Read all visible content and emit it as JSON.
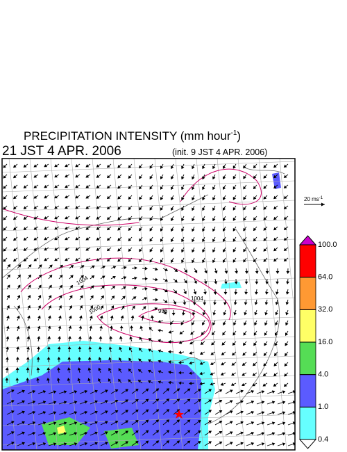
{
  "title": {
    "main": "PRECIPITATION INTENSITY (mm hour",
    "exponent": "-1",
    "close": ")"
  },
  "valid_time": "21 JST 4 APR. 2006",
  "init_time": "(init. 9 JST 4 APR. 2006)",
  "wind_scale": {
    "label": "20 ms",
    "exponent": "-1"
  },
  "contour_labels": [
    "1004",
    "1000",
    "996",
    "1004"
  ],
  "colorbar": {
    "levels": [
      0.4,
      {
        "value": 1,
        "label": "1.0"
      },
      {
        "value": 4,
        "label": "4.0"
      },
      {
        "value": 16,
        "label": "16.0"
      },
      {
        "value": 32,
        "label": "32.0"
      },
      {
        "value": 64,
        "label": "64.0"
      },
      {
        "value": 100,
        "label": "100.0"
      }
    ],
    "colors": [
      "#ffffff",
      "#66ffff",
      "#5b5bff",
      "#55dd55",
      "#ffff66",
      "#ff9933",
      "#ff0000",
      "#cc00cc"
    ]
  }
}
